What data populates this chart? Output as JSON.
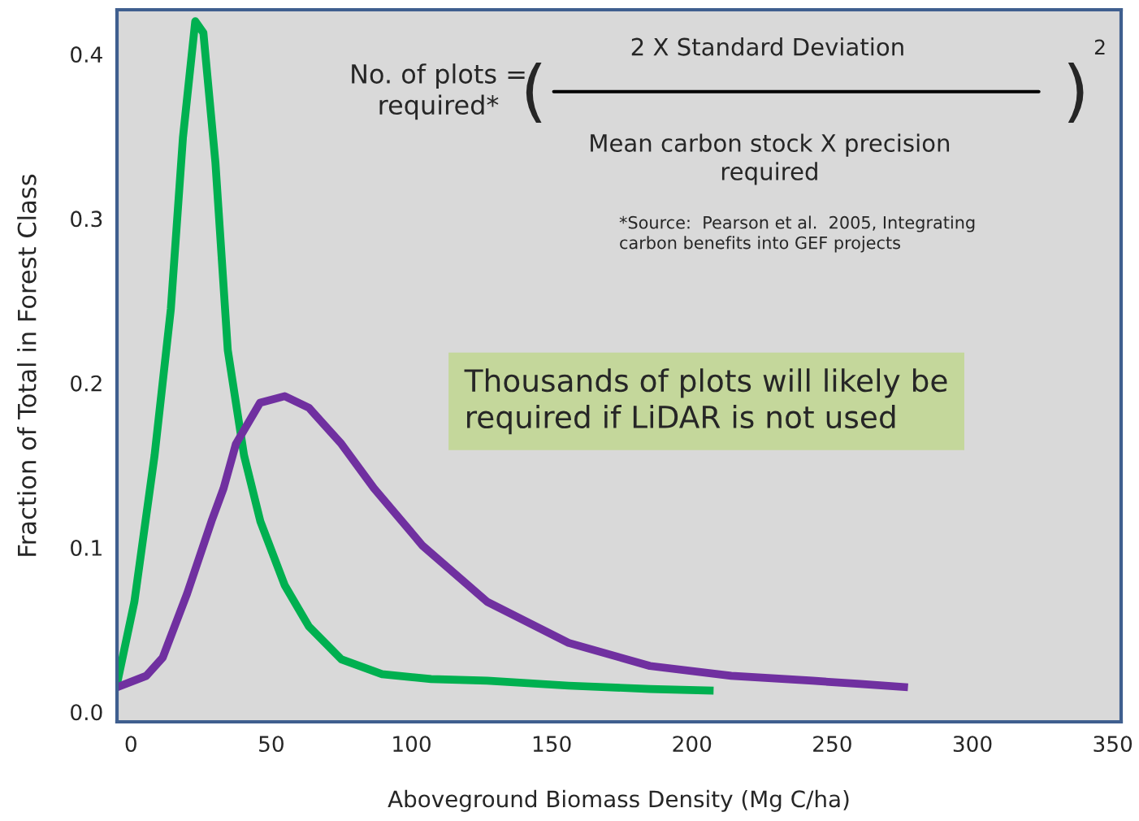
{
  "chart_data": {
    "type": "line",
    "xlabel": "Aboveground Biomass Density (Mg C/ha)",
    "ylabel": "Fraction of Total in Forest Class",
    "xlim": [
      -5,
      353
    ],
    "ylim": [
      -0.006,
      0.427
    ],
    "xticks": [
      0,
      50,
      100,
      150,
      200,
      250,
      300,
      350
    ],
    "yticks": [
      {
        "value": 0,
        "label": "0.0"
      },
      {
        "value": 0.1,
        "label": "0.1"
      },
      {
        "value": 0.2,
        "label": "0.2"
      },
      {
        "value": 0.3,
        "label": "0.3"
      },
      {
        "value": 0.4,
        "label": "0.4"
      }
    ],
    "grid": false,
    "legend": false,
    "line_style": "solid",
    "marker": "none",
    "series": [
      {
        "color": "#00b050",
        "x": [
          -5,
          1.2,
          8.4,
          14.2,
          18.5,
          22.9,
          25.8,
          30.1,
          34.5,
          40.3,
          46.1,
          54.8,
          63.4,
          75,
          89.5,
          107,
          127,
          156,
          185,
          207.7
        ],
        "values": [
          0.017,
          0.067,
          0.156,
          0.245,
          0.349,
          0.42,
          0.413,
          0.334,
          0.22,
          0.156,
          0.116,
          0.077,
          0.052,
          0.032,
          0.023,
          0.02,
          0.019,
          0.016,
          0.014,
          0.013
        ]
      },
      {
        "color": "#7030a0",
        "x": [
          -5,
          5.5,
          11.3,
          20,
          28.7,
          33,
          37.4,
          46,
          54.8,
          63.4,
          75,
          86.6,
          104,
          127,
          156,
          185,
          214,
          243,
          260,
          277
        ],
        "values": [
          0.015,
          0.022,
          0.033,
          0.072,
          0.116,
          0.136,
          0.163,
          0.188,
          0.192,
          0.185,
          0.163,
          0.136,
          0.101,
          0.067,
          0.042,
          0.028,
          0.022,
          0.019,
          0.017,
          0.015
        ]
      }
    ],
    "annotations": [
      "No. of plots =\nrequired*",
      "(",
      "2 X Standard Deviation",
      "Mean carbon stock X precision\nrequired",
      ")",
      "2",
      "*Source:  Pearson et al.  2005, Integrating\ncarbon benefits into GEF projects",
      "Thousands of plots will likely be\nrequired if LiDAR is not used"
    ]
  }
}
